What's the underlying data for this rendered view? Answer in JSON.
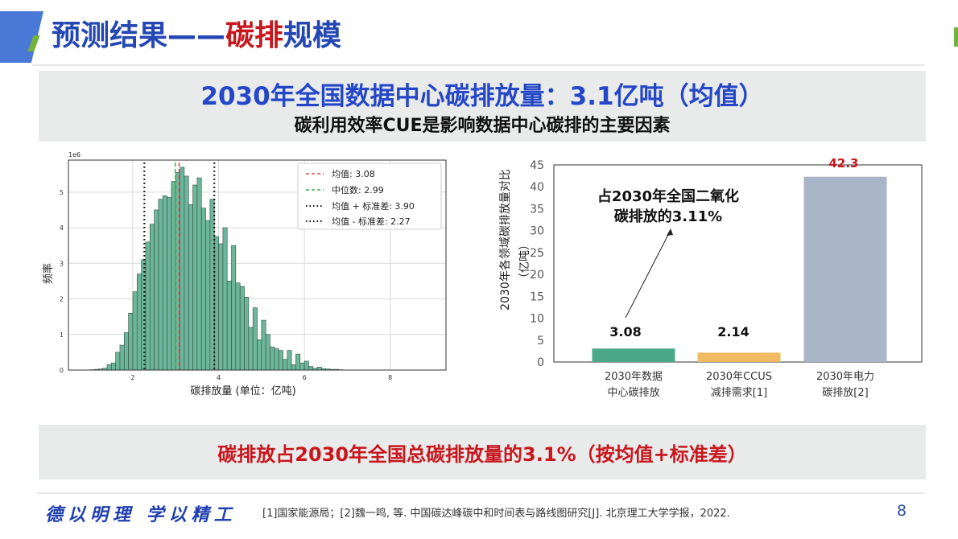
{
  "header": {
    "title_part1": "预测结果——",
    "title_part2": "碳排",
    "title_part3": "规模"
  },
  "top_banner": {
    "title": "2030年全国数据中心碳排放量：3.1亿吨（均值）",
    "subtitle": "碳利用效率CUE是影响数据中心碳排的主要因素"
  },
  "bottom_banner": {
    "text": "碳排放占2030年全国总碳排放量的3.1%（按均值+标准差）"
  },
  "footer": {
    "motto": "德以明理 学以精工",
    "reference": "[1]国家能源局；[2]魏一鸣, 等. 中国碳达峰碳中和时间表与路线图研究[J]. 北京理工大学学报，2022.",
    "page_number": "8"
  },
  "colors": {
    "title_blue": "#2447b3",
    "title_red": "#c8161d",
    "hist_bar": "#6db59b",
    "bar_dc": "#4aa889",
    "bar_ccus": "#f0ba62",
    "bar_power": "#aab5c7",
    "mean_line": "#d9534f",
    "median_line": "#3cb54a"
  },
  "chart_data": [
    {
      "type": "bar",
      "subtype": "histogram",
      "title": "",
      "xlabel": "碳排放量 (单位：亿吨)",
      "ylabel": "频率",
      "y_offset_label": "1e6",
      "xlim": [
        0.5,
        9.3
      ],
      "ylim": [
        0,
        5.9
      ],
      "xticks": [
        2,
        4,
        6,
        8
      ],
      "yticks": [
        0,
        1,
        2,
        3,
        4,
        5
      ],
      "grid": true,
      "bin_width": 0.1,
      "bin_starts": [
        1.0,
        1.1,
        1.2,
        1.3,
        1.4,
        1.5,
        1.6,
        1.7,
        1.8,
        1.9,
        2.0,
        2.1,
        2.2,
        2.3,
        2.4,
        2.5,
        2.6,
        2.7,
        2.8,
        2.9,
        3.0,
        3.1,
        3.2,
        3.3,
        3.4,
        3.5,
        3.6,
        3.7,
        3.8,
        3.9,
        4.0,
        4.1,
        4.2,
        4.3,
        4.4,
        4.5,
        4.6,
        4.7,
        4.8,
        4.9,
        5.0,
        5.1,
        5.2,
        5.3,
        5.4,
        5.5,
        5.6,
        5.7,
        5.8,
        5.9,
        6.0,
        6.1,
        6.2,
        6.3,
        6.4,
        6.5,
        6.6,
        6.7,
        6.8
      ],
      "values": [
        0.01,
        0.02,
        0.03,
        0.05,
        0.15,
        0.2,
        0.5,
        0.7,
        1.05,
        1.6,
        2.2,
        2.7,
        3.1,
        3.6,
        4.1,
        4.5,
        4.8,
        4.9,
        4.85,
        5.3,
        5.55,
        5.7,
        5.45,
        4.65,
        5.2,
        5.4,
        4.55,
        4.2,
        4.8,
        3.75,
        3.55,
        4.0,
        2.5,
        3.5,
        2.45,
        2.35,
        2.05,
        1.2,
        1.75,
        0.85,
        1.4,
        1.0,
        0.65,
        0.6,
        0.55,
        0.3,
        0.55,
        0.15,
        0.45,
        0.2,
        0.25,
        0.1,
        0.05,
        0.08,
        0.04,
        0.03,
        0.02,
        0.02,
        0.01
      ],
      "vlines": [
        {
          "label": "均值: 3.08",
          "x": 3.08,
          "style": "dashed",
          "color": "#d9534f"
        },
        {
          "label": "中位数: 2.99",
          "x": 2.99,
          "style": "dashed",
          "color": "#3cb54a"
        },
        {
          "label": "均值 + 标准差: 3.90",
          "x": 3.9,
          "style": "dotted",
          "color": "#111111"
        },
        {
          "label": "均值 - 标准差: 2.27",
          "x": 2.27,
          "style": "dotted",
          "color": "#111111"
        }
      ],
      "legend": [
        "均值: 3.08",
        "中位数: 2.99",
        "均值 + 标准差: 3.90",
        "均值 - 标准差: 2.27"
      ],
      "legend_position": "upper right"
    },
    {
      "type": "bar",
      "title": "",
      "xlabel": "",
      "ylabel": "2030年各领域碳排放量对比（亿吨）",
      "ylim": [
        0,
        45
      ],
      "yticks": [
        0,
        5,
        10,
        15,
        20,
        25,
        30,
        35,
        40,
        45
      ],
      "categories": [
        "2030年数据\n中心碳排放",
        "2030年CCUS\n减排需求[1]",
        "2030年电力\n碳排放[2]"
      ],
      "values": [
        3.08,
        2.14,
        42.3
      ],
      "value_labels": [
        "3.08",
        "2.14",
        "42.3"
      ],
      "annotation": "占2030年全国二氧化\n碳排放的3.11%",
      "grid": false
    }
  ],
  "hist": {
    "y_offset": "1e6",
    "ylabel": "频率",
    "xlabel": "碳排放量 (单位：亿吨)",
    "legend": [
      "均值: 3.08",
      "中位数: 2.99",
      "均值 + 标准差: 3.90",
      "均值 - 标准差: 2.27"
    ]
  },
  "bars": {
    "ylabel": "2030年各领域碳排放量对比",
    "ylabel_unit": "（亿吨）",
    "annotation_line1": "占2030年全国二氧化",
    "annotation_line2": "碳排放的3.11%",
    "labels": [
      "3.08",
      "2.14",
      "42.3"
    ],
    "cat1_l1": "2030年数据",
    "cat1_l2": "中心碳排放",
    "cat2_l1": "2030年CCUS",
    "cat2_l2": "减排需求[1]",
    "cat3_l1": "2030年电力",
    "cat3_l2": "碳排放[2]"
  }
}
